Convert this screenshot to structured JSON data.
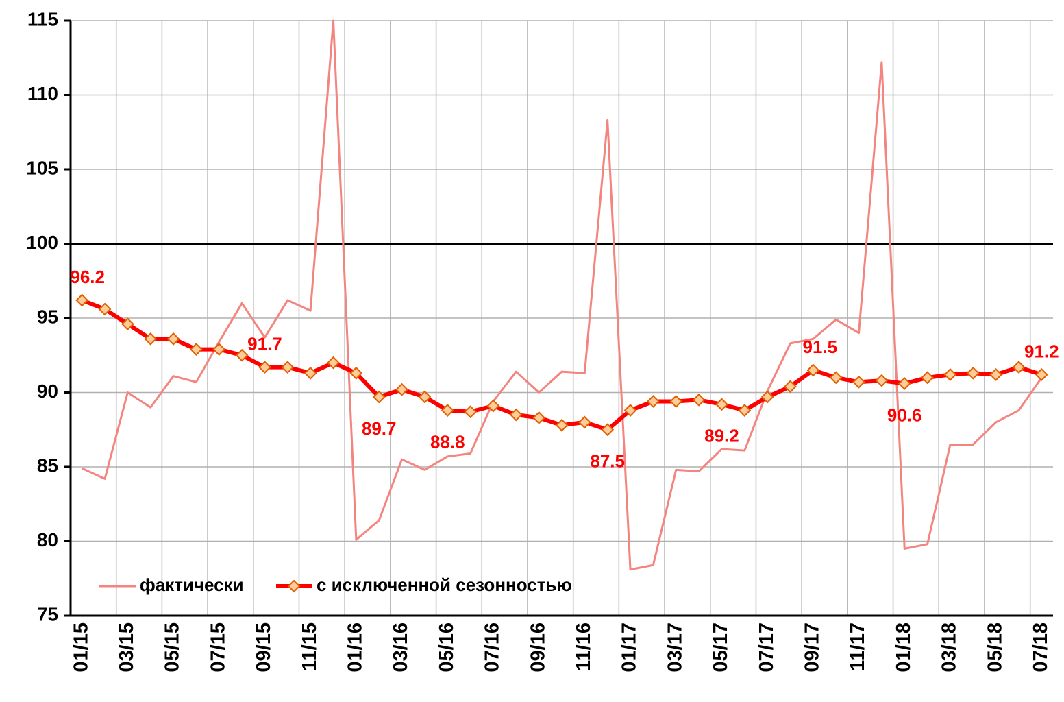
{
  "chart_data": {
    "type": "line",
    "categories": [
      "01/15",
      null,
      "03/15",
      null,
      "05/15",
      null,
      "07/15",
      null,
      "09/15",
      null,
      "11/15",
      null,
      "01/16",
      null,
      "03/16",
      null,
      "05/16",
      null,
      "07/16",
      null,
      "09/16",
      null,
      "11/16",
      null,
      "01/17",
      null,
      "03/17",
      null,
      "05/17",
      null,
      "07/17",
      null,
      "09/17",
      null,
      "11/17",
      null,
      "01/18",
      null,
      "03/18",
      null,
      "05/18",
      null,
      "07/18"
    ],
    "series": [
      {
        "name": "фактически",
        "color": "#f4847f",
        "values": [
          84.9,
          84.2,
          90.0,
          89.0,
          91.1,
          90.7,
          93.4,
          96.0,
          93.7,
          96.2,
          95.5,
          115,
          80.1,
          81.4,
          85.5,
          84.8,
          85.7,
          85.9,
          89.4,
          91.4,
          90.0,
          91.4,
          91.3,
          108.3,
          78.1,
          78.4,
          84.8,
          84.7,
          86.2,
          86.1,
          90.1,
          93.3,
          93.6,
          94.9,
          94.0,
          112.2,
          79.5,
          79.8,
          86.5,
          86.5,
          88.0,
          88.8,
          91.0
        ]
      },
      {
        "name": "с исключенной сезонностью",
        "color": "#ff0000",
        "marker_color": "#ffcc99",
        "values": [
          96.2,
          95.6,
          94.6,
          93.6,
          93.6,
          92.9,
          92.9,
          92.5,
          91.7,
          91.7,
          91.3,
          92.0,
          91.3,
          89.7,
          90.2,
          89.7,
          88.8,
          88.7,
          89.1,
          88.5,
          88.3,
          87.8,
          88.0,
          87.5,
          88.8,
          89.4,
          89.4,
          89.5,
          89.2,
          88.8,
          89.7,
          90.4,
          91.5,
          91.0,
          90.7,
          90.8,
          90.6,
          91.0,
          91.2,
          91.3,
          91.2,
          91.7,
          91.2
        ],
        "data_labels": [
          0,
          8,
          13,
          16,
          23,
          28,
          32,
          36,
          42
        ]
      }
    ],
    "ylim": [
      75,
      115
    ],
    "yticks": [
      75,
      80,
      85,
      90,
      95,
      100,
      105,
      110,
      115
    ],
    "reference_line": 100,
    "grid": true,
    "legend": "lower left"
  }
}
